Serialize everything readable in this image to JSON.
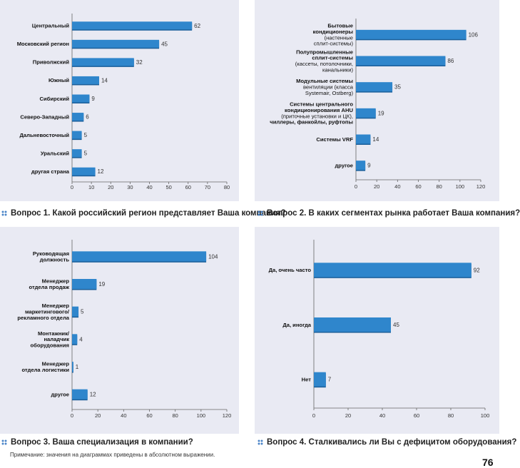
{
  "colors": {
    "panel": "#e9eaf3",
    "bar": "#2f86cc",
    "bar_dark": "#1b5f9a",
    "axis": "#666666"
  },
  "chart_data": [
    {
      "type": "bar",
      "orientation": "horizontal",
      "title": "Вопрос 1. Какой российский регион представляет Ваша компания?",
      "categories": [
        [
          {
            "t": "Центральный",
            "b": true
          }
        ],
        [
          {
            "t": "Московский регион",
            "b": true
          }
        ],
        [
          {
            "t": "Приволжский",
            "b": true
          }
        ],
        [
          {
            "t": "Южный",
            "b": true
          }
        ],
        [
          {
            "t": "Сибирский",
            "b": true
          }
        ],
        [
          {
            "t": "Северо-Западный",
            "b": true
          }
        ],
        [
          {
            "t": "Дальневосточный",
            "b": true
          }
        ],
        [
          {
            "t": "Уральский",
            "b": true
          }
        ],
        [
          {
            "t": "другая страна",
            "b": true
          }
        ]
      ],
      "values": [
        62,
        45,
        32,
        14,
        9,
        6,
        5,
        5,
        12
      ],
      "xlim": [
        0,
        80
      ],
      "ticks": [
        0,
        10,
        20,
        30,
        40,
        50,
        60,
        70,
        80
      ]
    },
    {
      "type": "bar",
      "orientation": "horizontal",
      "title": "Вопрос 2. В каких сегментах рынка работает Ваша компания?",
      "categories": [
        [
          {
            "t": "Бытовые",
            "b": true
          },
          {
            "t": "кондиционеры",
            "b": true
          },
          {
            "t": "(настенные",
            "b": false
          },
          {
            "t": "сплит-системы)",
            "b": false
          }
        ],
        [
          {
            "t": "Полупромышленные",
            "b": true
          },
          {
            "t": "сплит-системы",
            "b": true
          },
          {
            "t": "(кассеты, потолочники,",
            "b": false
          },
          {
            "t": "канальники)",
            "b": false
          }
        ],
        [
          {
            "t": "Модульные системы",
            "b": true
          },
          {
            "t": "вентиляции (класса",
            "b": false
          },
          {
            "t": "Systemair, Ostberg)",
            "b": false
          }
        ],
        [
          {
            "t": "Системы центрального",
            "b": true
          },
          {
            "t": "кондиционирования AHU",
            "b": true
          },
          {
            "t": "(приточные установки и ЦК),",
            "b": false
          },
          {
            "t": "чиллеры, фанкойлы, руфтопы",
            "b": true
          }
        ],
        [
          {
            "t": "Системы VRF",
            "b": true
          }
        ],
        [
          {
            "t": "другое",
            "b": true
          }
        ]
      ],
      "values": [
        106,
        86,
        35,
        19,
        14,
        9
      ],
      "xlim": [
        0,
        120
      ],
      "ticks": [
        0,
        20,
        40,
        60,
        80,
        100,
        120
      ]
    },
    {
      "type": "bar",
      "orientation": "horizontal",
      "title": "Вопрос 3. Ваша специализация в компании?",
      "categories": [
        [
          {
            "t": "Руководящая",
            "b": true
          },
          {
            "t": "должность",
            "b": true
          }
        ],
        [
          {
            "t": "Менеджер",
            "b": true
          },
          {
            "t": "отдела продаж",
            "b": true
          }
        ],
        [
          {
            "t": "Менеджер",
            "b": true
          },
          {
            "t": "маркетингового/",
            "b": true
          },
          {
            "t": "рекламного отдела",
            "b": true
          }
        ],
        [
          {
            "t": "Монтажник/",
            "b": true
          },
          {
            "t": "наладчик",
            "b": true
          },
          {
            "t": "оборудования",
            "b": true
          }
        ],
        [
          {
            "t": "Менеджер",
            "b": true
          },
          {
            "t": "отдела логистики",
            "b": true
          }
        ],
        [
          {
            "t": "другое",
            "b": true
          }
        ]
      ],
      "values": [
        104,
        19,
        5,
        4,
        1,
        12
      ],
      "xlim": [
        0,
        120
      ],
      "ticks": [
        0,
        20,
        40,
        60,
        80,
        100,
        120
      ]
    },
    {
      "type": "bar",
      "orientation": "horizontal",
      "title": "Вопрос 4. Сталкивались ли Вы с дефицитом оборудования?",
      "categories": [
        [
          {
            "t": "Да, очень часто",
            "b": true
          }
        ],
        [
          {
            "t": "Да, иногда",
            "b": true
          }
        ],
        [
          {
            "t": "Нет",
            "b": true
          }
        ]
      ],
      "values": [
        92,
        45,
        7
      ],
      "xlim": [
        0,
        100
      ],
      "ticks": [
        0,
        20,
        40,
        60,
        80,
        100
      ]
    }
  ],
  "note": "Примечание: значения на диаграммах приведены в абсолютном выражении.",
  "page_number": "76"
}
